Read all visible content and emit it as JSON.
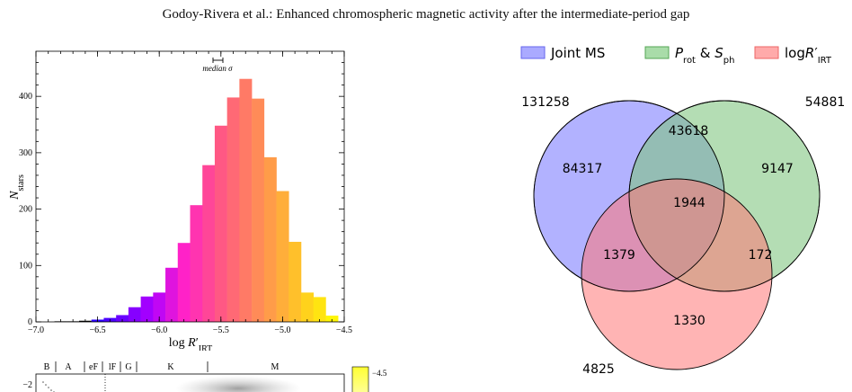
{
  "header": {
    "running_title": "Godoy-Rivera et al.: Enhanced chromospheric magnetic activity after the intermediate-period gap"
  },
  "chart_data": [
    {
      "type": "bar",
      "xlabel": "log R′IRT",
      "ylabel": "Nstars",
      "xlim": [
        -7.0,
        -4.5
      ],
      "ylim": [
        0,
        480
      ],
      "x_ticks": [
        "−7.0",
        "−6.5",
        "−6.0",
        "−5.5",
        "−5.0",
        "−4.5"
      ],
      "y_ticks": [
        "0",
        "100",
        "200",
        "300",
        "400"
      ],
      "annotation": "median σ",
      "bin_width": 0.1,
      "bin_left_edges": [
        -6.55,
        -6.45,
        -6.35,
        -6.25,
        -6.15,
        -6.05,
        -5.95,
        -5.85,
        -5.75,
        -5.65,
        -5.55,
        -5.45,
        -5.35,
        -5.25,
        -5.15,
        -5.05,
        -4.95,
        -4.85,
        -4.75,
        -4.65
      ],
      "values": [
        4,
        7,
        12,
        26,
        45,
        52,
        96,
        140,
        207,
        278,
        348,
        398,
        431,
        396,
        292,
        232,
        142,
        52,
        44,
        11
      ],
      "low_tail": [
        [
          -6.85,
          1
        ],
        [
          -6.75,
          1
        ],
        [
          -6.65,
          2
        ]
      ],
      "colormap": [
        "#1c00ff",
        "#6a00ff",
        "#b000ff",
        "#ff22c8",
        "#ff4f8c",
        "#ff7a66",
        "#ffa542",
        "#ffd21c",
        "#ffff00"
      ]
    },
    {
      "type": "scatter",
      "spectral_types": [
        "B",
        "A",
        "eF",
        "lF",
        "G",
        "K",
        "M"
      ],
      "y_tick": "−2",
      "colorbar_tick": "−4.5"
    }
  ],
  "venn": {
    "legend": [
      {
        "label": "Joint MS",
        "color": "#aaaaff"
      },
      {
        "label": "Prot & Sph",
        "color": "#a9dca9"
      },
      {
        "label": "logR′IRT",
        "color": "#ffaaaa"
      }
    ],
    "set_totals": {
      "joint_ms": "131258",
      "prot_sph": "54881",
      "logr": "4825"
    },
    "regions": {
      "only_joint_ms": "84317",
      "joint_ms_and_prot": "43618",
      "only_prot": "9147",
      "all_three": "1944",
      "joint_ms_and_logr": "1379",
      "prot_and_logr": "172",
      "only_logr": "1330"
    }
  }
}
